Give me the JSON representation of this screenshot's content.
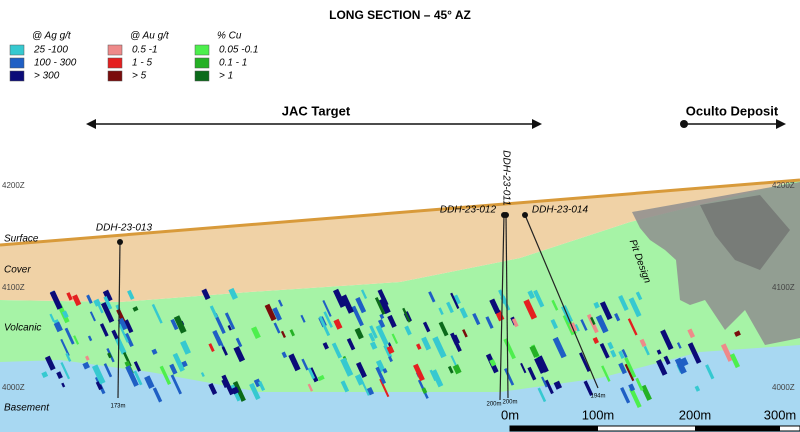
{
  "title": "LONG SECTION – 45° AZ",
  "legends": [
    {
      "title": "@ Ag g/t",
      "items": [
        {
          "label": "25 -100",
          "color": "#36c9d0"
        },
        {
          "label": "100 - 300",
          "color": "#1f5fc4"
        },
        {
          "label": "> 300",
          "color": "#0b0b78"
        }
      ]
    },
    {
      "title": "@ Au g/t",
      "items": [
        {
          "label": "0.5 -1",
          "color": "#ee8a8a"
        },
        {
          "label": "1 - 5",
          "color": "#e42020"
        },
        {
          "label": "> 5",
          "color": "#7a0c0c"
        }
      ]
    },
    {
      "title": "% Cu",
      "items": [
        {
          "label": "0.05 -0.1",
          "color": "#4def4d"
        },
        {
          "label": "0.1 - 1",
          "color": "#25b025"
        },
        {
          "label": "> 1",
          "color": "#0b6a1a"
        }
      ]
    }
  ],
  "targets": {
    "jac": "JAC Target",
    "oculto": "Oculto Deposit"
  },
  "elevations": [
    "4200Z",
    "4100Z",
    "4000Z"
  ],
  "units": [
    "Surface",
    "Cover",
    "Volcanic",
    "Basement"
  ],
  "pit_label": "Pit Design",
  "drill_holes": [
    {
      "name": "DDH-23-013",
      "depth": "173m"
    },
    {
      "name": "DDH-23-012",
      "depth": "200m"
    },
    {
      "name": "DDH-23-011",
      "depth": "200m"
    },
    {
      "name": "DDH-23-014",
      "depth": "194m"
    }
  ],
  "scale": [
    "0m",
    "100m",
    "200m",
    "300m"
  ]
}
